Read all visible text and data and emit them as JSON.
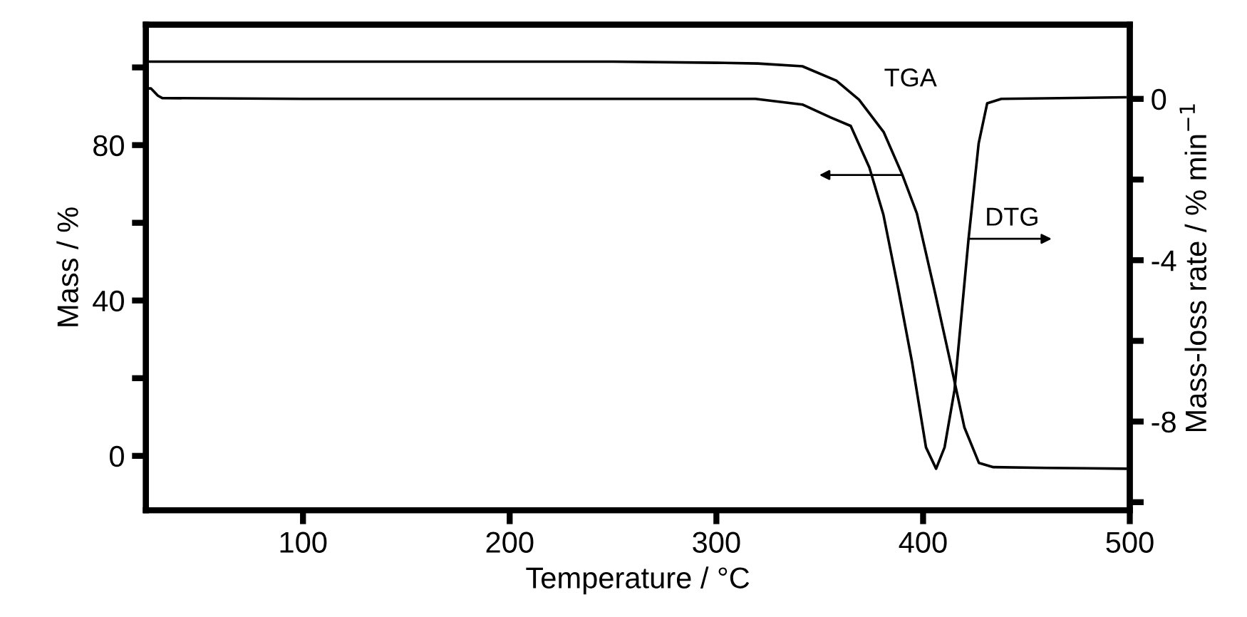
{
  "chart_data": {
    "type": "line",
    "xlabel": "Temperature / °C",
    "ylabel": "Mass / %",
    "y2label": "Mass-loss rate / % min$^{−1}$",
    "series": [
      {
        "name": "TGA",
        "color": "#000000",
        "x": [
          24,
          100,
          200,
          250,
          300,
          320,
          341.6,
          358,
          369,
          381,
          390,
          397,
          406,
          413,
          420,
          427,
          434,
          460,
          498
        ],
        "values": [
          101.5,
          101.5,
          101.5,
          101.5,
          101.2,
          101,
          100.3,
          96.6,
          91.7,
          83.3,
          72.3,
          62.4,
          41.5,
          24.6,
          7.3,
          -1.8,
          -2.9,
          -3.1,
          -3.3
        ]
      },
      {
        "name": "DTG",
        "color": "#000000",
        "axis": "y2",
        "x": [
          24,
          26.4,
          29.8,
          31.9,
          100,
          200,
          318.9,
          341.6,
          355.3,
          365,
          374,
          380.8,
          387.7,
          394.6,
          401.4,
          406.3,
          410.4,
          415.2,
          422,
          426.9,
          431,
          437.9,
          497.8
        ],
        "values": [
          0.26,
          0.26,
          0.08,
          0.02,
          0,
          0,
          0,
          -0.14,
          -0.46,
          -0.67,
          -1.7,
          -2.87,
          -4.64,
          -6.51,
          -8.64,
          -9.17,
          -8.64,
          -7.22,
          -3.47,
          -1.1,
          -0.11,
          0,
          0.04
        ]
      }
    ],
    "xlim": [
      24,
      500
    ],
    "xticks": [
      100,
      200,
      300,
      400,
      500
    ],
    "ylim": [
      -14,
      111
    ],
    "yticks": [
      0,
      {
        "value": 20,
        "label": null
      },
      40,
      {
        "value": 60,
        "label": null
      },
      80,
      {
        "value": 100,
        "label": null
      }
    ],
    "y2lim": [
      -10.2,
      1.84
    ],
    "y2ticks": [
      0,
      {
        "value": -2,
        "label": null
      },
      -4,
      {
        "value": -6,
        "label": null
      },
      -8,
      {
        "value": -10,
        "label": null
      }
    ],
    "grid": false,
    "legend": false,
    "marker": "none",
    "line_style": "solid"
  }
}
